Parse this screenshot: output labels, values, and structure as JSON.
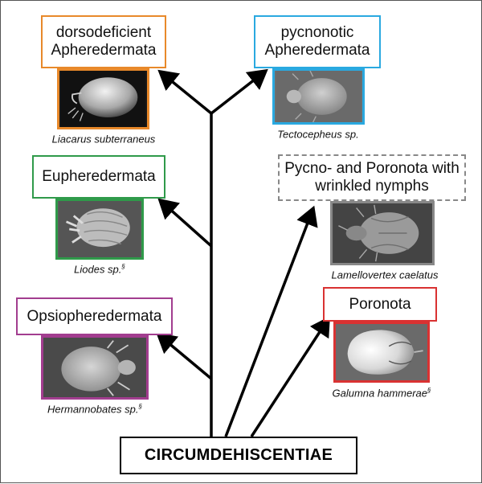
{
  "colors": {
    "orange": "#e8892a",
    "blue": "#2aa9e0",
    "green": "#2f9a4a",
    "gray": "#888888",
    "purple": "#a23d8f",
    "red": "#d93232",
    "branch": "#000000"
  },
  "root": {
    "label": "CIRCUMDEHISCENTIAE"
  },
  "groups": [
    {
      "id": "dorsodeficient",
      "label_line1": "dorsodeficient",
      "label_line2": "Apheredermata",
      "color": "orange",
      "specimen": "Liacarus subterraneus",
      "marker": ""
    },
    {
      "id": "pycnonotic",
      "label_line1": "pycnonotic",
      "label_line2": "Apheredermata",
      "color": "blue",
      "specimen": "Tectocepheus sp.",
      "marker": ""
    },
    {
      "id": "eupheredermata",
      "label_line1": "Eupheredermata",
      "label_line2": "",
      "color": "green",
      "specimen": "Liodes sp.",
      "marker": "§"
    },
    {
      "id": "wrinkled",
      "label_line1": "Pycno- and Poronota with",
      "label_line2": "wrinkled nymphs",
      "color": "gray",
      "specimen": "Lamellovertex caelatus",
      "marker": ""
    },
    {
      "id": "opsiopheredermata",
      "label_line1": "Opsiopheredermata",
      "label_line2": "",
      "color": "purple",
      "specimen": "Hermannobates sp.",
      "marker": "§"
    },
    {
      "id": "poronota",
      "label_line1": "Poronota",
      "label_line2": "",
      "color": "red",
      "specimen": "Galumna hammerae",
      "marker": "§"
    }
  ]
}
